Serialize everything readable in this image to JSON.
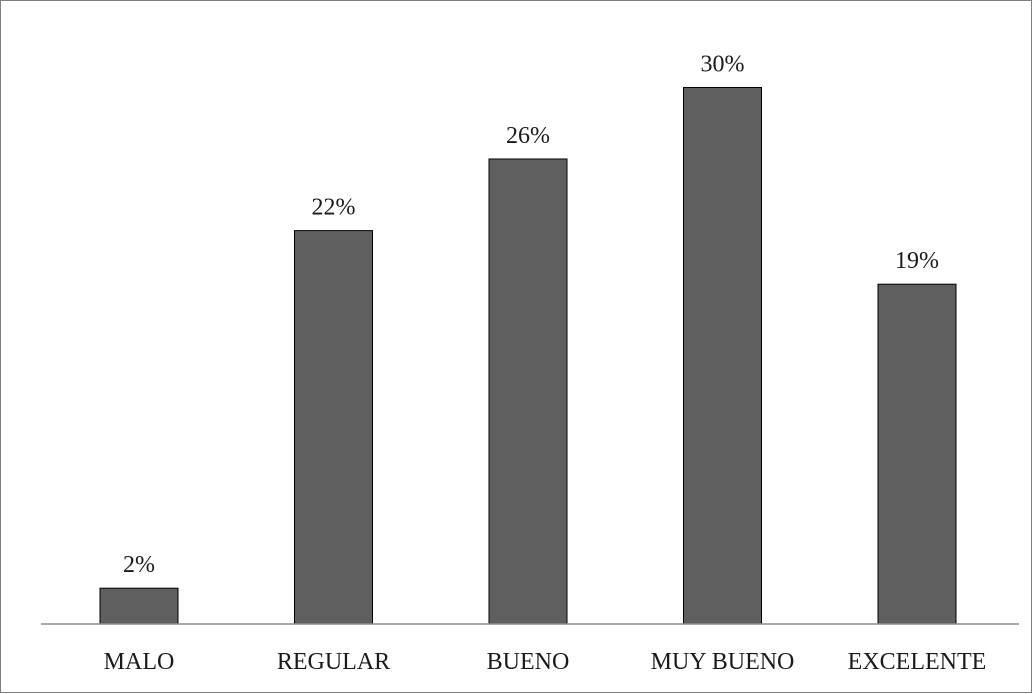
{
  "chart_data": {
    "type": "bar",
    "categories": [
      "MALO",
      "REGULAR",
      "BUENO",
      "MUY BUENO",
      "EXCELENTE"
    ],
    "values": [
      2,
      22,
      26,
      30,
      19
    ],
    "data_labels": [
      "2%",
      "22%",
      "26%",
      "30%",
      "19%"
    ],
    "unit": "%",
    "title": "",
    "xlabel": "",
    "ylabel": "",
    "ylim": [
      0,
      32.6
    ],
    "grid": false,
    "legend": "none",
    "colors": {
      "bar_fill": "#5f5f5f",
      "bar_border": "#000000",
      "axis": "#8c8c8c",
      "frame": "#7f7f7f"
    }
  }
}
